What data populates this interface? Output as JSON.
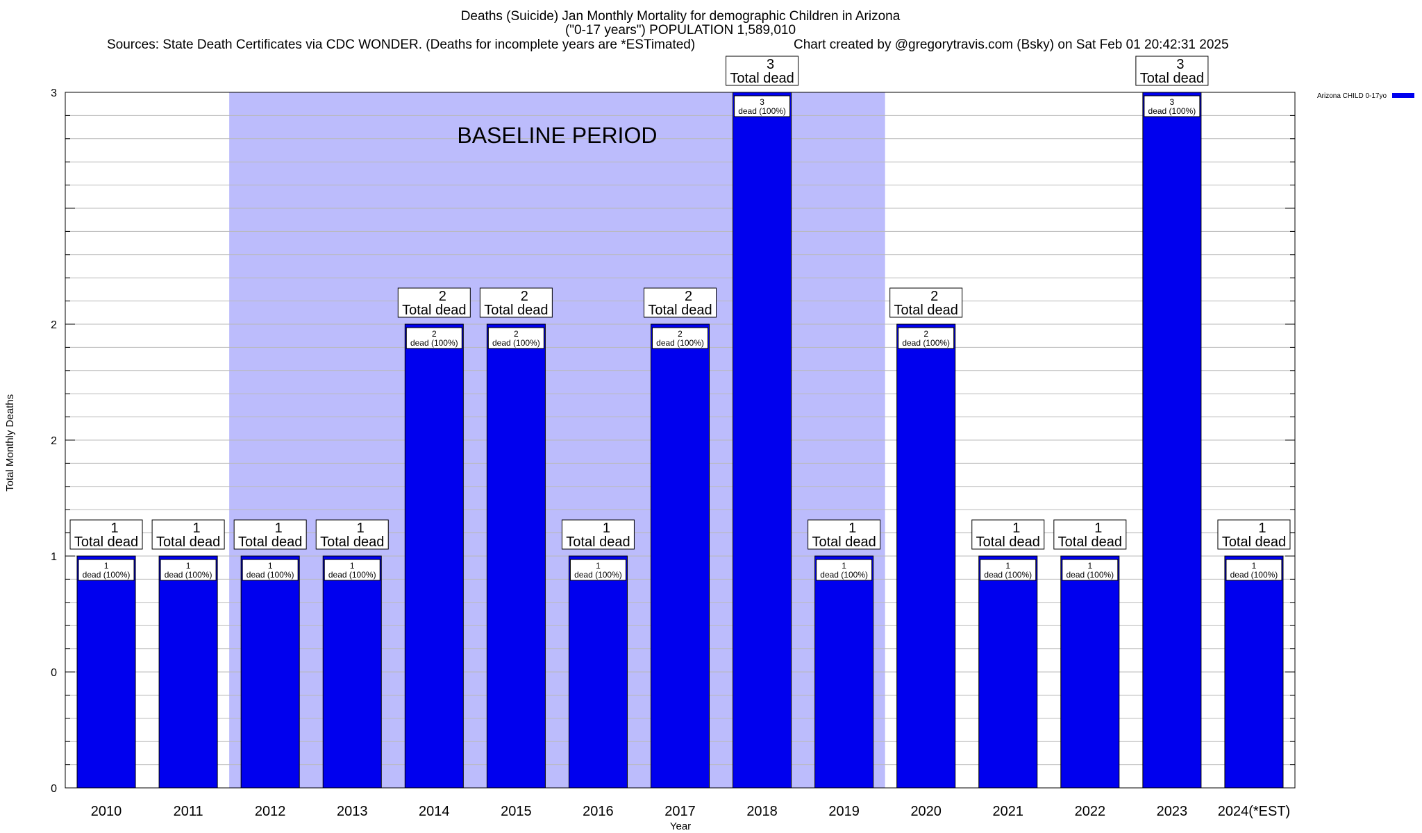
{
  "header": {
    "title_line1": "Deaths (Suicide) Jan Monthly Mortality for demographic Children in Arizona",
    "title_line2": "(\"0-17 years\") POPULATION 1,589,010",
    "sources": "Sources: State Death Certificates via CDC WONDER. (Deaths for incomplete years are *ESTimated)",
    "credit": "Chart created by @gregorytravis.com (Bsky) on Sat Feb 01 20:42:31 2025"
  },
  "chart_data": {
    "type": "bar",
    "categories": [
      "2010",
      "2011",
      "2012",
      "2013",
      "2014",
      "2015",
      "2016",
      "2017",
      "2018",
      "2019",
      "2020",
      "2021",
      "2022",
      "2023",
      "2024(*EST)"
    ],
    "series": [
      {
        "name": "Arizona CHILD 0-17yo",
        "values": [
          1,
          1,
          1,
          1,
          2,
          2,
          1,
          2,
          3,
          1,
          2,
          1,
          1,
          3,
          1
        ],
        "color": "#0000ee"
      }
    ],
    "data_labels": {
      "total_suffix": "Total dead",
      "inner_suffix": "dead (100%)"
    },
    "ytick_labels": [
      "0",
      "0",
      "1",
      "2",
      "2",
      "3"
    ],
    "ytick_values": [
      0,
      0.5,
      1,
      1.5,
      2,
      3
    ],
    "ylim": [
      0,
      3
    ],
    "xlabel": "Year",
    "ylabel": "Total Monthly Deaths",
    "baseline": {
      "label": "BASELINE PERIOD",
      "from": "2012",
      "to": "2019",
      "color": "#bcbcfc"
    },
    "grid": true,
    "legend_position": "top-right"
  }
}
